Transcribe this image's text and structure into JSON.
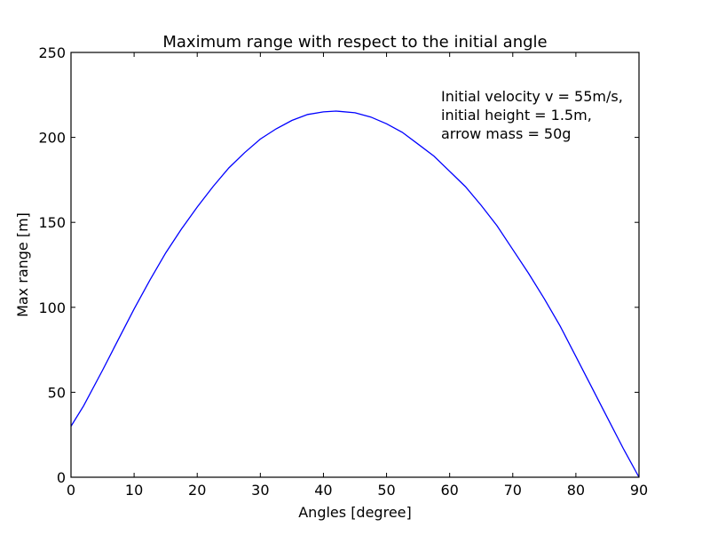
{
  "chart_data": {
    "type": "line",
    "title": "Maximum range with respect to the initial angle",
    "xlabel": "Angles [degree]",
    "ylabel": "Max range [m]",
    "xlim": [
      0,
      90
    ],
    "ylim": [
      0,
      250
    ],
    "xticks": [
      0,
      10,
      20,
      30,
      40,
      50,
      60,
      70,
      80,
      90
    ],
    "yticks": [
      0,
      50,
      100,
      150,
      200,
      250
    ],
    "grid": false,
    "line_color": "#0000ff",
    "annotation": [
      "Initial velocity v = 55m/s,",
      "initial height = 1.5m,",
      "arrow mass = 50g"
    ],
    "series": [
      {
        "x": [
          0,
          2,
          5,
          7.5,
          10,
          12.5,
          15,
          17.5,
          20,
          22.5,
          25,
          27.5,
          30,
          32.5,
          35,
          37.5,
          40,
          42,
          45,
          47.5,
          50,
          52.5,
          55,
          57.5,
          60,
          62.5,
          65,
          67.5,
          70,
          72.5,
          75,
          77.5,
          80,
          82.5,
          85,
          87.5,
          90
        ],
        "y": [
          30,
          42,
          63,
          81,
          99,
          116,
          132,
          146,
          159,
          171,
          182,
          191,
          199,
          205,
          210,
          213.5,
          215,
          215.5,
          214.5,
          212,
          208,
          203,
          196,
          189,
          180,
          171,
          160,
          148,
          134,
          120,
          105,
          89,
          71,
          53,
          35,
          17,
          0
        ]
      }
    ]
  }
}
